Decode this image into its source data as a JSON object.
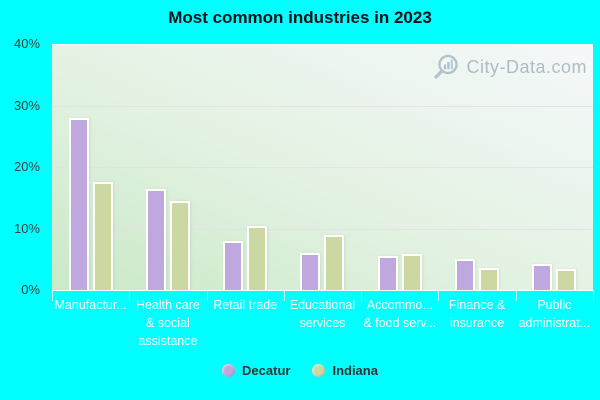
{
  "title": "Most common industries in 2023",
  "watermark": {
    "text": "City-Data.com"
  },
  "y_axis": {
    "tick_labels": [
      "40%",
      "30%",
      "20%",
      "10%",
      "0%"
    ]
  },
  "chart_data": {
    "type": "bar",
    "title": "Most common industries in 2023",
    "categories": [
      "Manufactur...",
      "Health care & social assistance",
      "Retail trade",
      "Educational services",
      "Accommo... & food serv...",
      "Finance & insurance",
      "Public administrat..."
    ],
    "categories_lines": [
      [
        "Manufactur..."
      ],
      [
        "Health care",
        "& social",
        "assistance"
      ],
      [
        "Retail trade"
      ],
      [
        "Educational",
        "services"
      ],
      [
        "Accommo...",
        "& food serv..."
      ],
      [
        "Finance &",
        "insurance"
      ],
      [
        "Public",
        "administrat..."
      ]
    ],
    "series": [
      {
        "name": "Decatur",
        "color": "#bfa8de",
        "values": [
          28,
          16.5,
          8,
          6,
          5.6,
          5.0,
          4.2
        ]
      },
      {
        "name": "Indiana",
        "color": "#ccd8a2",
        "values": [
          17.5,
          14.5,
          10.4,
          9.0,
          5.8,
          3.6,
          3.4
        ]
      }
    ],
    "xlabel": "",
    "ylabel": "",
    "ylim": [
      0,
      40
    ],
    "yticks": [
      0,
      10,
      20,
      30,
      40
    ],
    "ytick_format": "percent",
    "grid": "horizontal",
    "legend_position": "bottom"
  },
  "legend": {
    "items": [
      {
        "label": "Decatur",
        "color": "#bfa8de"
      },
      {
        "label": "Indiana",
        "color": "#ccd8a2"
      }
    ]
  },
  "colors": {
    "page_background": "#00ffff",
    "plot_gradient_bottom_left": "#c9e9c7",
    "plot_gradient_top_right": "#f5f8fa",
    "gridline": "#e8dcec",
    "axis_tick_label": "#3c3c3c",
    "category_label": "#ffffff",
    "legend_text": "#333333",
    "watermark_text": "#9aa8b4",
    "bar_border": "#ffffff"
  }
}
